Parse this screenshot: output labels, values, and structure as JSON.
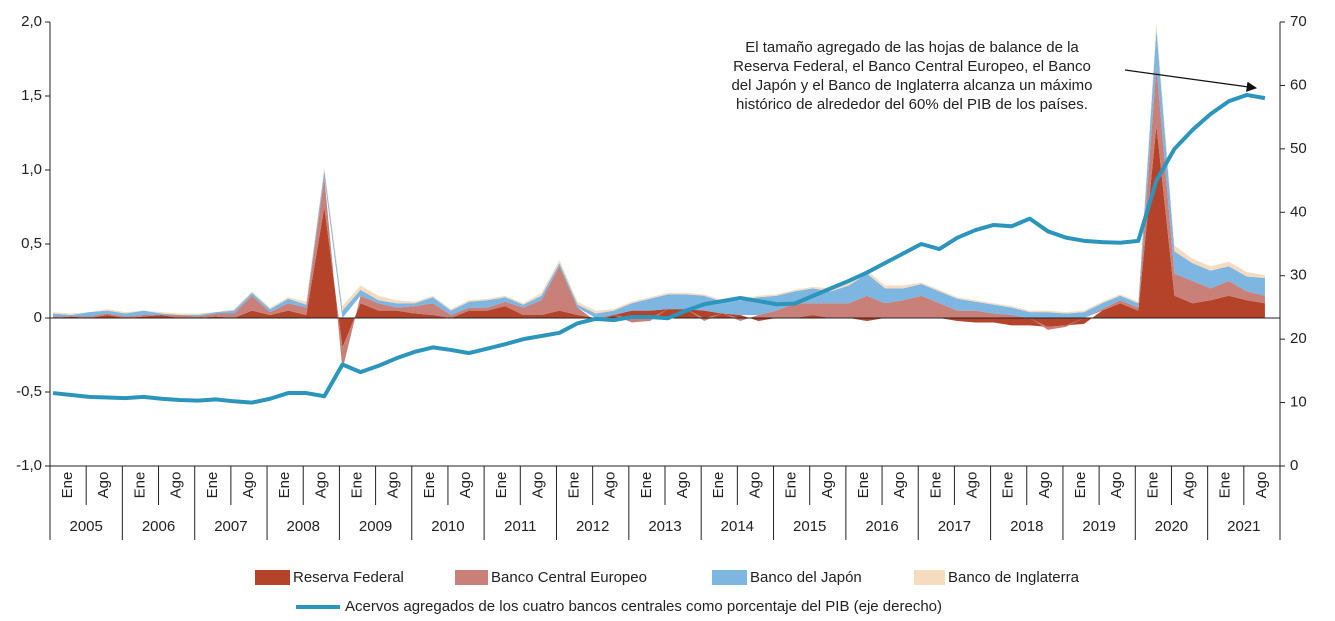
{
  "chart_data": {
    "type": "stacked-area-line",
    "annotation": [
      "El tamaño agregado de las hojas de balance de la",
      "Reserva Federal, el Banco Central Europeo, el Banco",
      "del Japón y el Banco de Inglaterra alcanza un máximo",
      "histórico de alrededor del 60% del PIB de los países."
    ],
    "x_axis": {
      "month_labels": [
        "Ene",
        "Ago"
      ],
      "years": [
        2005,
        2006,
        2007,
        2008,
        2009,
        2010,
        2011,
        2012,
        2013,
        2014,
        2015,
        2016,
        2017,
        2018,
        2019,
        2020,
        2021
      ]
    },
    "x": [
      "2005-01",
      "2005-04",
      "2005-07",
      "2005-10",
      "2006-01",
      "2006-04",
      "2006-07",
      "2006-10",
      "2007-01",
      "2007-04",
      "2007-07",
      "2007-10",
      "2008-01",
      "2008-04",
      "2008-07",
      "2008-10",
      "2009-01",
      "2009-04",
      "2009-07",
      "2009-10",
      "2010-01",
      "2010-04",
      "2010-07",
      "2010-10",
      "2011-01",
      "2011-04",
      "2011-07",
      "2011-10",
      "2012-01",
      "2012-04",
      "2012-07",
      "2012-10",
      "2013-01",
      "2013-04",
      "2013-07",
      "2013-10",
      "2014-01",
      "2014-04",
      "2014-07",
      "2014-10",
      "2015-01",
      "2015-04",
      "2015-07",
      "2015-10",
      "2016-01",
      "2016-04",
      "2016-07",
      "2016-10",
      "2017-01",
      "2017-04",
      "2017-07",
      "2017-10",
      "2018-01",
      "2018-04",
      "2018-07",
      "2018-10",
      "2019-01",
      "2019-04",
      "2019-07",
      "2019-10",
      "2020-01",
      "2020-04",
      "2020-07",
      "2020-10",
      "2021-01",
      "2021-04",
      "2021-07",
      "2021-10"
    ],
    "series": [
      {
        "name": "Reserva Federal",
        "color": "#b5432a",
        "values": [
          0,
          0.01,
          0,
          0.02,
          0,
          0.01,
          0.02,
          0,
          0,
          0.01,
          0,
          0.05,
          0.02,
          0.05,
          0.02,
          0.75,
          -0.2,
          0.1,
          0.05,
          0.05,
          0.03,
          0.02,
          0,
          0.05,
          0.05,
          0.08,
          0.02,
          0.02,
          0.05,
          0.02,
          0,
          0.02,
          0.05,
          0.05,
          0.06,
          0.06,
          0.05,
          0.03,
          0.02,
          -0.02,
          0,
          0,
          0.02,
          0,
          0,
          -0.02,
          0,
          0,
          0,
          0,
          -0.02,
          -0.03,
          -0.03,
          -0.05,
          -0.05,
          -0.06,
          -0.05,
          -0.04,
          0.05,
          0.1,
          0.05,
          1.3,
          0.15,
          0.1,
          0.12,
          0.15,
          0.12,
          0.1
        ]
      },
      {
        "name": "Banco Central Europeo",
        "color": "#c98079",
        "values": [
          0.01,
          0,
          0.01,
          0.01,
          0.01,
          0.01,
          0,
          0.02,
          0.01,
          0.02,
          0.03,
          0.1,
          0.02,
          0.05,
          0.05,
          0.2,
          -0.15,
          0.05,
          0.05,
          0.02,
          0.05,
          0.08,
          0.02,
          0.02,
          0.02,
          0.03,
          0.05,
          0.1,
          0.3,
          0.05,
          -0.02,
          0,
          -0.03,
          -0.02,
          0,
          0,
          -0.02,
          0,
          -0.02,
          0.02,
          0.05,
          0.1,
          0.08,
          0.1,
          0.1,
          0.15,
          0.1,
          0.12,
          0.15,
          0.1,
          0.05,
          0.05,
          0.03,
          0.02,
          0,
          -0.02,
          -0.01,
          0,
          0.01,
          0.02,
          0.02,
          0.4,
          0.15,
          0.15,
          0.08,
          0.1,
          0.06,
          0.05
        ]
      },
      {
        "name": "Banco del Japón",
        "color": "#7db6e0",
        "values": [
          0.02,
          0.01,
          0.03,
          0.02,
          0.02,
          0.03,
          0.01,
          0,
          0.01,
          0.01,
          0.02,
          0.02,
          0.02,
          0.03,
          0.02,
          0.05,
          0.05,
          0.04,
          0.02,
          0.03,
          0.02,
          0.04,
          0.03,
          0.04,
          0.05,
          0.03,
          0.02,
          0.03,
          0.02,
          0.02,
          0.03,
          0.03,
          0.05,
          0.08,
          0.1,
          0.1,
          0.1,
          0.08,
          0.1,
          0.12,
          0.1,
          0.08,
          0.1,
          0.08,
          0.12,
          0.15,
          0.1,
          0.08,
          0.08,
          0.08,
          0.08,
          0.06,
          0.06,
          0.05,
          0.04,
          0.04,
          0.03,
          0.04,
          0.04,
          0.03,
          0.03,
          0.25,
          0.15,
          0.12,
          0.12,
          0.1,
          0.1,
          0.12
        ]
      },
      {
        "name": "Banco de Inglaterra",
        "color": "#f5dcc0",
        "values": [
          0.01,
          0.01,
          0,
          0.01,
          0.01,
          0,
          0.01,
          0.01,
          0.01,
          0,
          0.01,
          0.01,
          0.01,
          0.01,
          0.02,
          0.02,
          0.03,
          0.03,
          0.03,
          0.02,
          0.01,
          0.01,
          0.01,
          0.01,
          0.01,
          0.01,
          0.01,
          0.02,
          0.02,
          0.02,
          0.02,
          0.01,
          0.01,
          0.01,
          0.01,
          0.01,
          0.01,
          0.01,
          0.01,
          0.01,
          0.01,
          0.01,
          0.01,
          0.02,
          0.02,
          0.02,
          0.02,
          0.02,
          0.01,
          0.01,
          0.01,
          0.01,
          0.01,
          0.01,
          0.01,
          0.01,
          0.01,
          0.01,
          0.01,
          0.01,
          0.01,
          0.05,
          0.04,
          0.03,
          0.03,
          0.03,
          0.03,
          0.02
        ]
      },
      {
        "name": "Acervos agregados de los cuatro bancos centrales como porcentaje del PIB (eje derecho)",
        "color": "#2b95bc",
        "axis": "y2",
        "values": [
          11.5,
          11.2,
          10.9,
          10.8,
          10.7,
          10.9,
          10.6,
          10.4,
          10.3,
          10.5,
          10.2,
          10,
          10.6,
          11.5,
          11.5,
          11,
          16,
          14.8,
          15.8,
          17,
          18,
          18.7,
          18.3,
          17.8,
          18.5,
          19.2,
          20,
          20.5,
          21,
          22.5,
          23.2,
          23,
          23.5,
          23.5,
          23.3,
          24.5,
          25.5,
          26,
          26.5,
          26,
          25.5,
          25.6,
          26.8,
          28,
          29.2,
          30.5,
          32,
          33.5,
          35,
          34.2,
          36,
          37.2,
          38,
          37.8,
          39,
          37,
          36,
          35.5,
          35.3,
          35.2,
          35.5,
          45,
          50,
          53,
          55.5,
          57.5,
          58.5,
          58
        ]
      }
    ],
    "ylim": [
      -1,
      2
    ],
    "yticks": [
      {
        "value": -1,
        "label": "-1,0"
      },
      {
        "value": -0.5,
        "label": "-0,5"
      },
      0,
      {
        "value": 0.5,
        "label": "0,5"
      },
      {
        "value": 1,
        "label": "1,0"
      },
      {
        "value": 1.5,
        "label": "1,5"
      },
      {
        "value": 2,
        "label": "2,0"
      }
    ],
    "y2lim": [
      0,
      70
    ],
    "y2ticks": [
      0,
      10,
      20,
      30,
      40,
      50,
      60,
      70
    ]
  }
}
